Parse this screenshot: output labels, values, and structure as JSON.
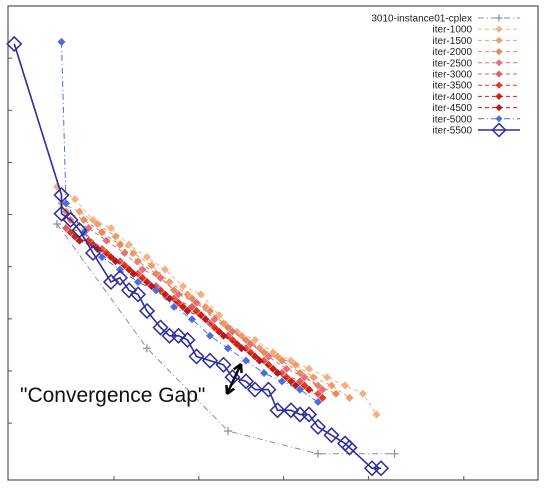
{
  "chart_data": {
    "type": "scatter",
    "title": "",
    "xlabel": "",
    "ylabel": "",
    "xlim": [
      0,
      100
    ],
    "ylim": [
      0,
      100
    ],
    "grid": false,
    "legend_position": "top-right",
    "annotation": "\"Convergence Gap\"",
    "series": [
      {
        "name": "3010-instance01-cplex",
        "color": "#8c8c9c",
        "marker": "plus",
        "line": "dashdot",
        "points": [
          [
            10,
            57
          ],
          [
            30,
            27
          ],
          [
            48,
            7
          ],
          [
            68,
            1.5
          ],
          [
            85,
            1.5
          ]
        ]
      },
      {
        "name": "iter-1000",
        "color": "#f3b080",
        "marker": "diamond-filled",
        "line": "dashed",
        "points": [
          [
            10,
            66
          ],
          [
            14,
            63
          ],
          [
            18,
            58
          ],
          [
            22,
            56
          ],
          [
            26,
            52
          ],
          [
            30,
            49
          ],
          [
            34,
            46
          ],
          [
            38,
            42
          ],
          [
            42,
            40
          ],
          [
            46,
            35
          ],
          [
            50,
            31
          ],
          [
            54,
            29
          ],
          [
            58,
            26
          ],
          [
            62,
            24
          ],
          [
            66,
            22
          ],
          [
            70,
            20
          ],
          [
            74,
            18
          ],
          [
            78,
            16
          ],
          [
            81,
            11
          ]
        ]
      },
      {
        "name": "iter-1500",
        "color": "#ee9d6a",
        "marker": "diamond-filled",
        "line": "dashed",
        "points": [
          [
            11,
            62
          ],
          [
            15,
            60
          ],
          [
            19,
            57
          ],
          [
            23,
            54
          ],
          [
            27,
            50
          ],
          [
            31,
            47
          ],
          [
            35,
            43
          ],
          [
            39,
            40
          ],
          [
            43,
            37
          ],
          [
            47,
            33
          ],
          [
            51,
            30
          ],
          [
            55,
            27
          ],
          [
            59,
            25
          ],
          [
            63,
            23
          ],
          [
            67,
            20
          ],
          [
            71,
            18
          ],
          [
            75,
            15
          ]
        ]
      },
      {
        "name": "iter-2000",
        "color": "#e88a5c",
        "marker": "diamond-filled",
        "line": "dashed",
        "points": [
          [
            12,
            60
          ],
          [
            16,
            58
          ],
          [
            20,
            55
          ],
          [
            24,
            52
          ],
          [
            28,
            48
          ],
          [
            32,
            45
          ],
          [
            36,
            41
          ],
          [
            40,
            39
          ],
          [
            44,
            36
          ],
          [
            48,
            32
          ],
          [
            52,
            29
          ],
          [
            56,
            26
          ],
          [
            60,
            24
          ],
          [
            64,
            21
          ],
          [
            68,
            18
          ],
          [
            72,
            16
          ]
        ]
      },
      {
        "name": "iter-2500",
        "color": "#e6707a",
        "marker": "diamond-filled",
        "line": "dashed",
        "points": [
          [
            13,
            58
          ],
          [
            17,
            56
          ],
          [
            21,
            53
          ],
          [
            25,
            50
          ],
          [
            29,
            46
          ],
          [
            33,
            44
          ],
          [
            37,
            40
          ],
          [
            41,
            38
          ],
          [
            45,
            34
          ],
          [
            49,
            31
          ],
          [
            53,
            28
          ],
          [
            57,
            25
          ],
          [
            61,
            22
          ],
          [
            65,
            20
          ],
          [
            69,
            17
          ]
        ]
      },
      {
        "name": "iter-3000",
        "color": "#e05d5a",
        "marker": "diamond-filled",
        "line": "dashed",
        "points": [
          [
            12,
            56
          ],
          [
            16,
            55
          ],
          [
            20,
            51
          ],
          [
            24,
            48
          ],
          [
            28,
            45
          ],
          [
            32,
            42
          ],
          [
            36,
            39
          ],
          [
            40,
            37
          ],
          [
            44,
            33
          ],
          [
            48,
            30
          ],
          [
            52,
            27
          ],
          [
            56,
            24
          ],
          [
            60,
            21
          ],
          [
            64,
            19
          ],
          [
            68,
            16
          ]
        ]
      },
      {
        "name": "iter-3500",
        "color": "#e03a20",
        "marker": "diamond-filled",
        "line": "dashed",
        "points": [
          [
            13,
            55
          ],
          [
            17,
            53
          ],
          [
            21,
            50
          ],
          [
            25,
            47
          ],
          [
            29,
            44
          ],
          [
            33,
            41
          ],
          [
            37,
            38
          ],
          [
            41,
            36
          ],
          [
            45,
            32
          ],
          [
            49,
            29
          ],
          [
            53,
            26
          ],
          [
            57,
            23
          ],
          [
            61,
            20
          ],
          [
            65,
            18
          ],
          [
            69,
            15
          ]
        ]
      },
      {
        "name": "iter-4000",
        "color": "#cc2010",
        "marker": "diamond-filled",
        "line": "dashed",
        "points": [
          [
            14,
            54
          ],
          [
            18,
            52
          ],
          [
            22,
            49
          ],
          [
            26,
            46
          ],
          [
            30,
            43
          ],
          [
            34,
            40
          ],
          [
            38,
            37
          ],
          [
            42,
            35
          ],
          [
            46,
            31
          ],
          [
            50,
            28
          ],
          [
            54,
            25
          ],
          [
            58,
            22
          ],
          [
            62,
            19
          ],
          [
            66,
            17
          ]
        ]
      },
      {
        "name": "iter-4500",
        "color": "#b51a20",
        "marker": "diamond-filled",
        "line": "dashed",
        "points": [
          [
            15,
            53
          ],
          [
            19,
            51
          ],
          [
            23,
            48
          ],
          [
            27,
            45
          ],
          [
            31,
            42
          ],
          [
            35,
            39
          ],
          [
            39,
            36
          ],
          [
            43,
            34
          ],
          [
            47,
            30
          ],
          [
            51,
            27
          ],
          [
            55,
            24
          ],
          [
            59,
            21
          ],
          [
            63,
            18
          ]
        ]
      },
      {
        "name": "iter-5000",
        "color": "#4a6ee0",
        "marker": "diamond-filled",
        "line": "dashdot",
        "points": [
          [
            11,
            101
          ],
          [
            12,
            62
          ],
          [
            16,
            55
          ],
          [
            20,
            49
          ],
          [
            24,
            46
          ],
          [
            28,
            43
          ],
          [
            32,
            41
          ],
          [
            36,
            37
          ],
          [
            40,
            34
          ],
          [
            44,
            30
          ],
          [
            48,
            27
          ],
          [
            52,
            24
          ],
          [
            56,
            21
          ],
          [
            60,
            19
          ],
          [
            64,
            17
          ],
          [
            68,
            14
          ]
        ]
      },
      {
        "name": "iter-5500",
        "color": "#2c2c9c",
        "marker": "diamond-open",
        "line": "solid",
        "points": [
          [
            0.5,
            100.5
          ],
          [
            11,
            64
          ],
          [
            11,
            59.5
          ],
          [
            13,
            58
          ],
          [
            15,
            55.5
          ],
          [
            18,
            50
          ],
          [
            22,
            43
          ],
          [
            24,
            44
          ],
          [
            26,
            41
          ],
          [
            28,
            40
          ],
          [
            30,
            36
          ],
          [
            33,
            32
          ],
          [
            35,
            30
          ],
          [
            37,
            30
          ],
          [
            39,
            29
          ],
          [
            41,
            25
          ],
          [
            44,
            24
          ],
          [
            47,
            23
          ],
          [
            49,
            20
          ],
          [
            52,
            19
          ],
          [
            54,
            17
          ],
          [
            57,
            17
          ],
          [
            59,
            12
          ],
          [
            62,
            12
          ],
          [
            64,
            11
          ],
          [
            66,
            11
          ],
          [
            68,
            8
          ],
          [
            71,
            6
          ],
          [
            74,
            4
          ],
          [
            75,
            3
          ],
          [
            80,
            -2
          ],
          [
            82,
            -2
          ]
        ]
      }
    ]
  }
}
